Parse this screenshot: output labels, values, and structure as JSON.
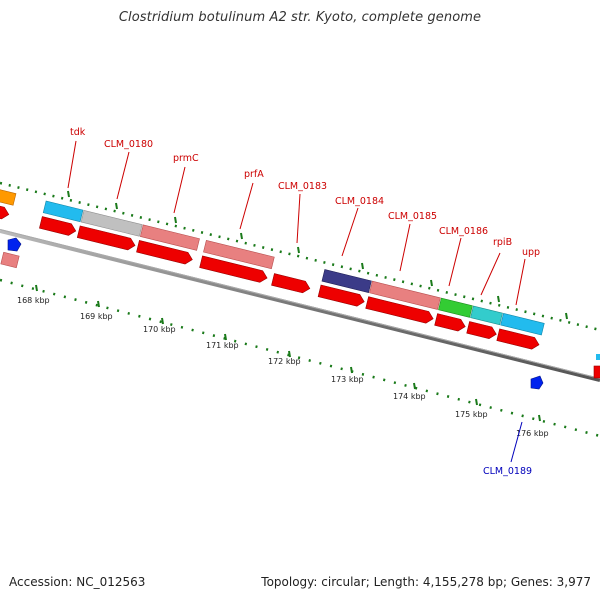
{
  "title": "Clostridium botulinum A2 str. Kyoto, complete genome",
  "footer": {
    "accession_label": "Accession:",
    "accession": "NC_012563",
    "topology_label": "Topology:",
    "topology": "circular",
    "length_label": "Length:",
    "length": "4,155,278 bp",
    "genes_label": "Genes:",
    "genes": "3,977"
  },
  "scale": {
    "ticks": [
      "168 kbp",
      "169 kbp",
      "170 kbp",
      "171 kbp",
      "172 kbp",
      "173 kbp",
      "174 kbp",
      "175 kbp",
      "176 kbp"
    ]
  },
  "genes": [
    {
      "name": "tdk"
    },
    {
      "name": "CLM_0180"
    },
    {
      "name": "prmC"
    },
    {
      "name": "prfA"
    },
    {
      "name": "CLM_0183"
    },
    {
      "name": "CLM_0184"
    },
    {
      "name": "CLM_0185"
    },
    {
      "name": "CLM_0186"
    },
    {
      "name": "rpiB"
    },
    {
      "name": "upp"
    },
    {
      "name": "CLM_0189"
    }
  ],
  "colors": {
    "gene_label": "#cc0000",
    "minus_label": "#0000bb",
    "backbone": "#777777",
    "tick": "#1a7a1a",
    "cds_red": "#ee0000",
    "cyan": "#22bbee",
    "grey": "#c0c0c0",
    "pink": "#e88080",
    "navy": "#3b3b88",
    "green": "#33cc33",
    "orange": "#ff9900",
    "blue": "#0022ee"
  }
}
